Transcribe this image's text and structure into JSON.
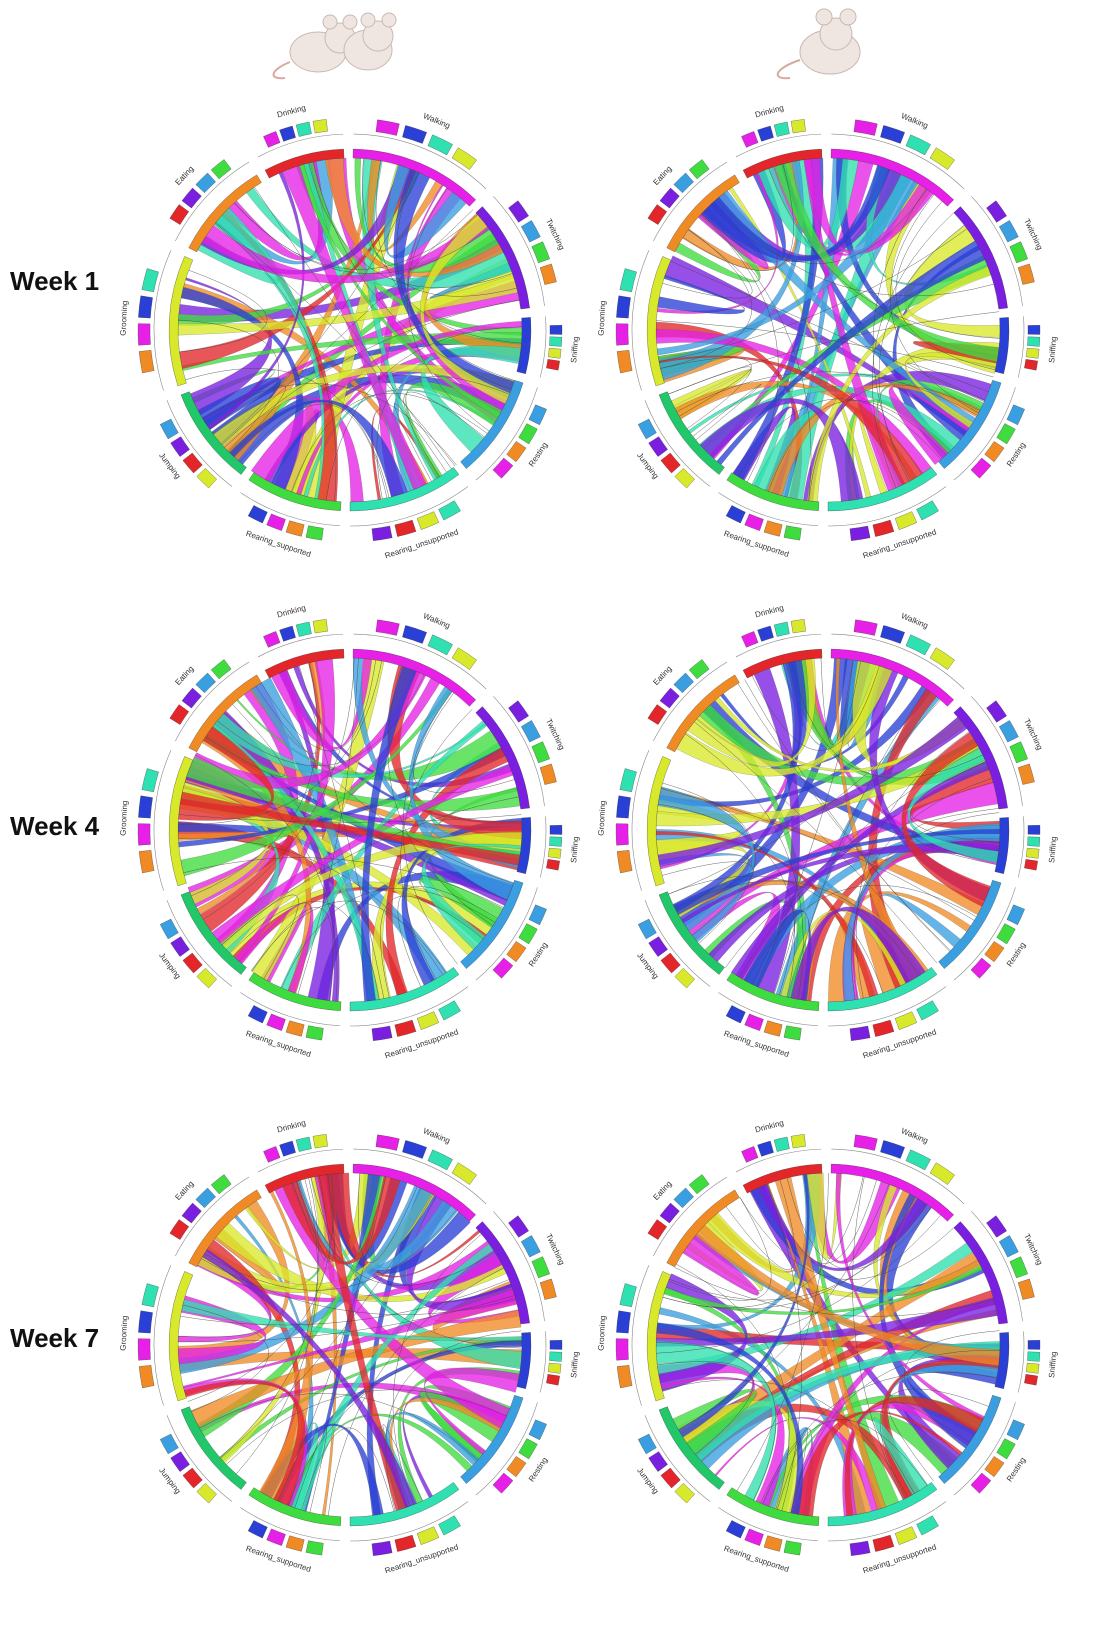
{
  "rows": [
    {
      "label": "Week 1",
      "diagrams": [
        {
          "sectors": [
            "Walking",
            "Twitching",
            "Sniffing",
            "Resting",
            "Rearing_unsupported",
            "Rearing_supported",
            "Jumping",
            "Grooming",
            "Eating",
            "Drinking"
          ]
        },
        {
          "sectors": [
            "Walking",
            "Twitching",
            "Sniffing",
            "Resting",
            "Rearing_unsupported",
            "Rearing_supported",
            "Jumping",
            "Grooming",
            "Eating",
            "Drinking"
          ]
        }
      ]
    },
    {
      "label": "Week 4",
      "diagrams": [
        {
          "sectors": [
            "Walking",
            "Twitching",
            "Sniffing",
            "Resting",
            "Rearing_unsupported",
            "Rearing_supported",
            "Jumping",
            "Grooming",
            "Eating",
            "Drinking"
          ]
        },
        {
          "sectors": [
            "Walking",
            "Twitching",
            "Sniffing",
            "Resting",
            "Rearing_unsupported",
            "Rearing_supported",
            "Jumping",
            "Grooming",
            "Eating",
            "Drinking"
          ]
        }
      ]
    },
    {
      "label": "Week 7",
      "diagrams": [
        {
          "sectors": [
            "Walking",
            "Twitching",
            "Sniffing",
            "Resting",
            "Rearing_unsupported",
            "Rearing_supported",
            "Jumping",
            "Grooming",
            "Eating",
            "Drinking"
          ]
        },
        {
          "sectors": [
            "Walking",
            "Twitching",
            "Sniffing",
            "Resting",
            "Rearing_unsupported",
            "Rearing_supported",
            "Jumping",
            "Grooming",
            "Eating",
            "Drinking"
          ]
        }
      ]
    }
  ]
}
